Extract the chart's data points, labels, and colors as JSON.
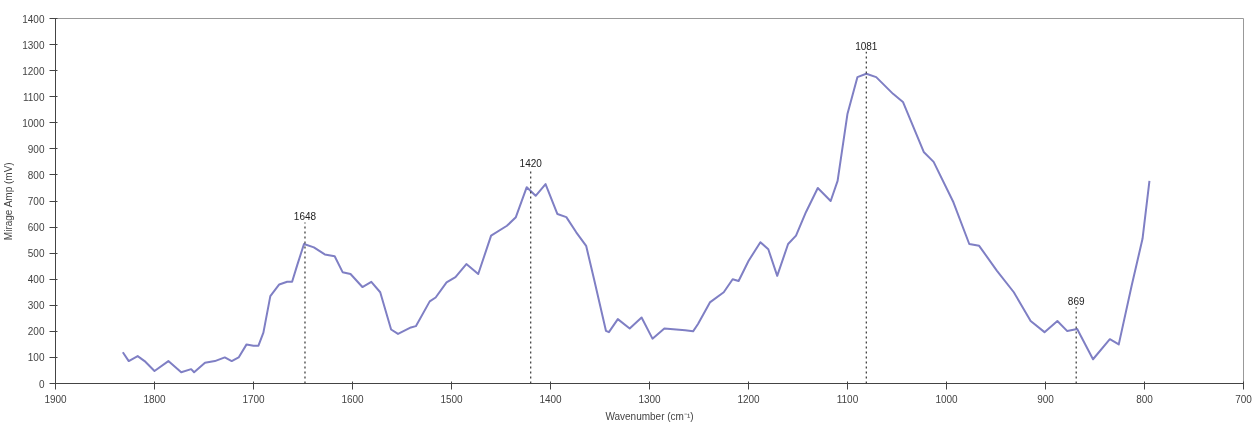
{
  "chart_data": {
    "type": "line",
    "xlabel": "Wavenumber (cm⁻¹)",
    "ylabel": "Mirage Amp (mV)",
    "xlim": [
      1900,
      700
    ],
    "xticks": [
      1900,
      1800,
      1700,
      1600,
      1500,
      1400,
      1300,
      1200,
      1100,
      1000,
      900,
      800,
      700
    ],
    "ylim": [
      0,
      1400
    ],
    "yticks": [
      0,
      100,
      200,
      300,
      400,
      500,
      600,
      700,
      800,
      900,
      1000,
      1100,
      1200,
      1300,
      1400
    ],
    "grid": false,
    "marker": "none",
    "line_style": "solid",
    "series": [
      {
        "color": "#7f7fc4",
        "x": [
          1832,
          1826,
          1817,
          1810,
          1800,
          1786,
          1773,
          1763,
          1760,
          1749,
          1739,
          1729,
          1722,
          1715,
          1707,
          1700,
          1695,
          1690,
          1683,
          1674,
          1666,
          1661,
          1656,
          1649,
          1639,
          1628,
          1618,
          1610,
          1602,
          1590,
          1581,
          1572,
          1561,
          1554,
          1541,
          1536,
          1522,
          1516,
          1505,
          1496,
          1485,
          1473,
          1460,
          1444,
          1435,
          1424,
          1415,
          1405,
          1393,
          1384,
          1374,
          1364,
          1356,
          1344,
          1341,
          1332,
          1320,
          1308,
          1297,
          1285,
          1264,
          1256,
          1251,
          1239,
          1225,
          1216,
          1210,
          1200,
          1188,
          1180,
          1171,
          1160,
          1152,
          1142,
          1130,
          1117,
          1110,
          1100,
          1090,
          1081,
          1071,
          1054,
          1044,
          1023,
          1013,
          993,
          977,
          967,
          949,
          932,
          915,
          901,
          888,
          878,
          868,
          852,
          835,
          826,
          813,
          802,
          795
        ],
        "values": [
          120,
          86,
          105,
          86,
          48,
          86,
          43,
          55,
          43,
          80,
          86,
          100,
          86,
          100,
          150,
          145,
          145,
          195,
          335,
          380,
          390,
          390,
          452,
          535,
          522,
          495,
          488,
          427,
          420,
          370,
          390,
          350,
          207,
          190,
          215,
          220,
          315,
          330,
          388,
          408,
          458,
          420,
          567,
          605,
          638,
          753,
          720,
          765,
          650,
          638,
          580,
          528,
          400,
          202,
          197,
          247,
          211,
          253,
          172,
          211,
          204,
          200,
          228,
          311,
          350,
          400,
          393,
          470,
          542,
          515,
          413,
          535,
          567,
          657,
          750,
          700,
          777,
          1035,
          1175,
          1188,
          1175,
          1111,
          1080,
          888,
          850,
          695,
          535,
          528,
          432,
          350,
          240,
          197,
          240,
          201,
          209,
          93,
          170,
          150,
          375,
          555,
          777
        ]
      }
    ],
    "ref_lines": [
      {
        "axis": "x",
        "value": 1648,
        "label": "1648",
        "line_style": "dotted"
      },
      {
        "axis": "x",
        "value": 1420,
        "label": "1420",
        "line_style": "dotted"
      },
      {
        "axis": "x",
        "value": 1081,
        "label": "1081",
        "line_style": "dotted"
      },
      {
        "axis": "x",
        "value": 869,
        "label": "869",
        "line_style": "dotted"
      }
    ]
  }
}
